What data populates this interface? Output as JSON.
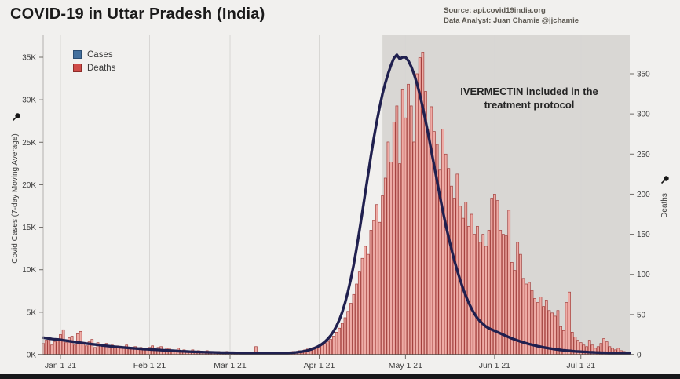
{
  "header": {
    "title": "COVID-19 in Uttar Pradesh (India)",
    "source_line1": "Source: api.covid19india.org",
    "source_line2": "Data Analyst:  Juan Chamie @jjchamie"
  },
  "legend": {
    "items": [
      {
        "label": "Cases",
        "color": "#44709d",
        "border": "#2b4d72"
      },
      {
        "label": "Deaths",
        "color": "#cf4b48",
        "border": "#8e2c29"
      }
    ]
  },
  "annotation": {
    "line1": "IVERMECTIN included in the",
    "line2": "treatment protocol"
  },
  "axes": {
    "left_title": "Covid Cases (7-day Moving Average)",
    "right_title": "Deaths",
    "left_ticks": [
      {
        "label": "0K",
        "value": 0
      },
      {
        "label": "5K",
        "value": 5000
      },
      {
        "label": "10K",
        "value": 10000
      },
      {
        "label": "15K",
        "value": 15000
      },
      {
        "label": "20K",
        "value": 20000
      },
      {
        "label": "25K",
        "value": 25000
      },
      {
        "label": "30K",
        "value": 30000
      },
      {
        "label": "35K",
        "value": 35000
      }
    ],
    "right_ticks": [
      {
        "label": "0",
        "value": 0
      },
      {
        "label": "50",
        "value": 50
      },
      {
        "label": "100",
        "value": 100
      },
      {
        "label": "150",
        "value": 150
      },
      {
        "label": "200",
        "value": 200
      },
      {
        "label": "250",
        "value": 250
      },
      {
        "label": "300",
        "value": 300
      },
      {
        "label": "350",
        "value": 350
      }
    ],
    "x_ticks": [
      {
        "label": "Jan 1 21",
        "day": 6
      },
      {
        "label": "Feb 1 21",
        "day": 37
      },
      {
        "label": "Mar 1 21",
        "day": 65
      },
      {
        "label": "Apr 1 21",
        "day": 96
      },
      {
        "label": "May 1 21",
        "day": 126
      },
      {
        "label": "Jun 1 21",
        "day": 157
      },
      {
        "label": "Jul 1 21",
        "day": 187
      }
    ]
  },
  "chart_data": {
    "type": "line+bar combo, dual axis",
    "title": "COVID-19 in Uttar Pradesh (India)",
    "x_unit": "day (daily values; axis starts ~6 days before Jan 1 21, ends ~Jul 18 21)",
    "left_axis": {
      "label": "Covid Cases (7-day Moving Average)",
      "min": 0,
      "max_tick": 35000
    },
    "right_axis": {
      "label": "Deaths",
      "min": 0,
      "max_tick": 350
    },
    "grid": "vertical gridlines at each month tick only",
    "legend_position": "top-left inside plot",
    "shade": {
      "start_day": 118,
      "color": "#d9d7d4",
      "label": "IVERMECTIN included in the treatment protocol"
    },
    "series": [
      {
        "name": "Cases",
        "type": "line",
        "axis": "left",
        "color": "#20204f",
        "width": 3.4,
        "values": [
          2000,
          1950,
          1900,
          1850,
          1800,
          1780,
          1750,
          1690,
          1640,
          1590,
          1540,
          1500,
          1450,
          1400,
          1360,
          1310,
          1270,
          1230,
          1190,
          1150,
          1110,
          1070,
          1030,
          1000,
          960,
          930,
          900,
          870,
          840,
          810,
          780,
          760,
          730,
          710,
          690,
          660,
          640,
          620,
          600,
          580,
          560,
          540,
          520,
          500,
          480,
          460,
          440,
          420,
          400,
          385,
          370,
          355,
          340,
          330,
          315,
          305,
          295,
          285,
          275,
          265,
          255,
          250,
          240,
          235,
          230,
          225,
          220,
          215,
          210,
          205,
          200,
          198,
          195,
          192,
          190,
          188,
          186,
          185,
          184,
          183,
          183,
          184,
          186,
          190,
          196,
          205,
          220,
          240,
          270,
          310,
          360,
          420,
          500,
          600,
          720,
          860,
          1030,
          1250,
          1520,
          1850,
          2250,
          2750,
          3350,
          4100,
          5000,
          6100,
          7400,
          8900,
          10600,
          12500,
          14600,
          16800,
          19000,
          21200,
          23400,
          25500,
          27400,
          29100,
          30700,
          32000,
          33100,
          34100,
          34900,
          35300,
          34800,
          35000,
          35000,
          34600,
          33900,
          33000,
          31900,
          30600,
          29100,
          27500,
          25800,
          24000,
          22200,
          20400,
          18600,
          16900,
          15300,
          13800,
          12400,
          11100,
          9900,
          8800,
          7800,
          6900,
          6100,
          5400,
          4800,
          4300,
          3900,
          3600,
          3300,
          3100,
          2950,
          2800,
          2650,
          2500,
          2350,
          2200,
          2050,
          1900,
          1780,
          1660,
          1550,
          1440,
          1340,
          1250,
          1160,
          1080,
          1000,
          930,
          860,
          800,
          740,
          690,
          640,
          590,
          550,
          510,
          480,
          450,
          420,
          390,
          370,
          350,
          330,
          310,
          290,
          275,
          260,
          245,
          230,
          220,
          210,
          200,
          190,
          185,
          180,
          175,
          170,
          165,
          160
        ]
      },
      {
        "name": "Deaths",
        "type": "bar",
        "axis": "right",
        "color": "#eeaca6",
        "border": "#a43f3c",
        "values": [
          14,
          18,
          22,
          12,
          16,
          20,
          25,
          31,
          15,
          21,
          23,
          12,
          26,
          29,
          13,
          11,
          16,
          19,
          9,
          15,
          13,
          11,
          14,
          10,
          12,
          9,
          11,
          8,
          10,
          12,
          9,
          7,
          10,
          8,
          9,
          7,
          8,
          9,
          11,
          7,
          9,
          10,
          6,
          8,
          7,
          5,
          6,
          8,
          5,
          6,
          4,
          5,
          6,
          4,
          5,
          3,
          4,
          5,
          3,
          4,
          3,
          4,
          3,
          3,
          4,
          3,
          2,
          3,
          2,
          3,
          2,
          2,
          3,
          2,
          10,
          3,
          2,
          2,
          3,
          2,
          2,
          3,
          2,
          3,
          2,
          3,
          3,
          4,
          4,
          5,
          5,
          6,
          7,
          8,
          9,
          10,
          11,
          13,
          14,
          16,
          19,
          23,
          28,
          33,
          39,
          46,
          54,
          64,
          75,
          88,
          103,
          120,
          135,
          125,
          155,
          167,
          187,
          165,
          198,
          220,
          265,
          240,
          290,
          310,
          238,
          330,
          295,
          337,
          310,
          265,
          350,
          370,
          377,
          328,
          281,
          309,
          278,
          262,
          230,
          281,
          250,
          232,
          210,
          195,
          225,
          185,
          170,
          190,
          160,
          175,
          150,
          160,
          140,
          150,
          135,
          155,
          195,
          200,
          192,
          155,
          150,
          148,
          180,
          115,
          105,
          140,
          125,
          95,
          88,
          90,
          80,
          70,
          65,
          72,
          60,
          68,
          55,
          52,
          48,
          55,
          35,
          30,
          65,
          78,
          28,
          22,
          18,
          15,
          12,
          10,
          18,
          12,
          8,
          10,
          14,
          20,
          16,
          10,
          8,
          6,
          8,
          5,
          4,
          3,
          3
        ]
      }
    ]
  }
}
